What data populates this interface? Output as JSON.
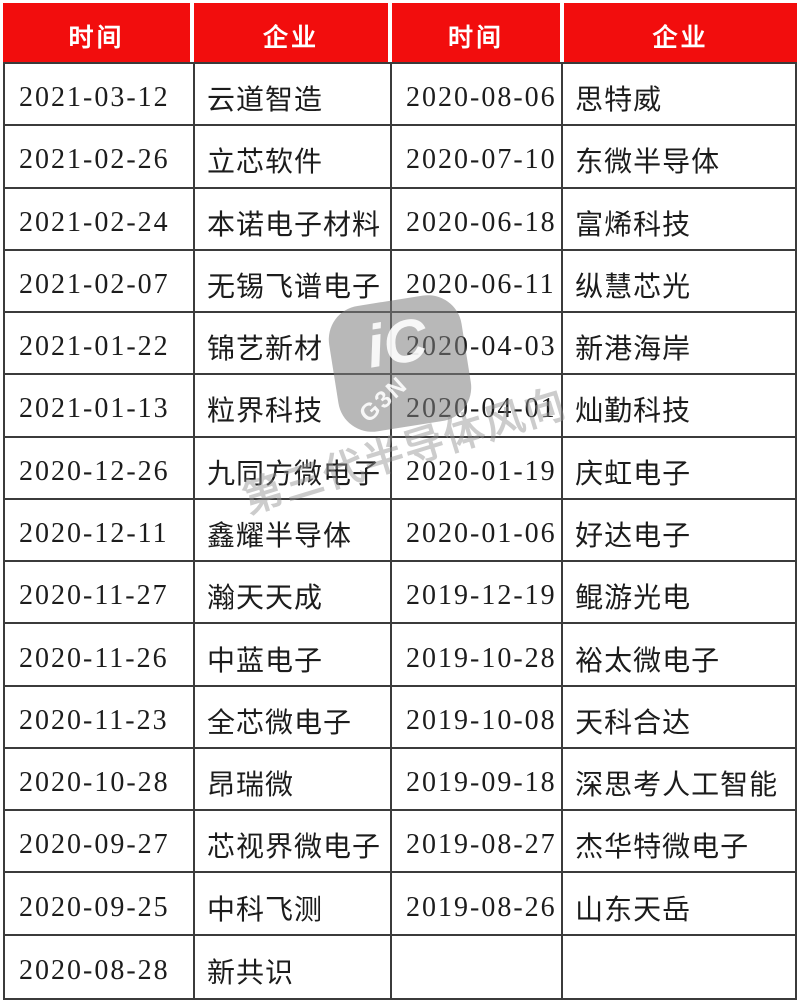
{
  "colors": {
    "header_bg": "#f20d0d",
    "header_text": "#ffffff",
    "border": "#3b3b3b",
    "cell_text": "#1c1c1c",
    "watermark": "#969696"
  },
  "table": {
    "columns": [
      "时间",
      "企业",
      "时间",
      "企业"
    ],
    "rows": [
      {
        "time_left": "2021-03-12",
        "company_left": "云道智造",
        "time_right": "2020-08-06",
        "company_right": "思特威"
      },
      {
        "time_left": "2021-02-26",
        "company_left": "立芯软件",
        "time_right": "2020-07-10",
        "company_right": "东微半导体"
      },
      {
        "time_left": "2021-02-24",
        "company_left": "本诺电子材料",
        "time_right": "2020-06-18",
        "company_right": "富烯科技"
      },
      {
        "time_left": "2021-02-07",
        "company_left": "无锡飞谱电子",
        "time_right": "2020-06-11",
        "company_right": "纵慧芯光"
      },
      {
        "time_left": "2021-01-22",
        "company_left": "锦艺新材",
        "time_right": "2020-04-03",
        "company_right": "新港海岸"
      },
      {
        "time_left": "2021-01-13",
        "company_left": "粒界科技",
        "time_right": "2020-04-01",
        "company_right": "灿勤科技"
      },
      {
        "time_left": "2020-12-26",
        "company_left": "九同方微电子",
        "time_right": "2020-01-19",
        "company_right": "庆虹电子"
      },
      {
        "time_left": "2020-12-11",
        "company_left": "鑫耀半导体",
        "time_right": "2020-01-06",
        "company_right": "好达电子"
      },
      {
        "time_left": "2020-11-27",
        "company_left": "瀚天天成",
        "time_right": "2019-12-19",
        "company_right": "鲲游光电"
      },
      {
        "time_left": "2020-11-26",
        "company_left": "中蓝电子",
        "time_right": "2019-10-28",
        "company_right": "裕太微电子"
      },
      {
        "time_left": "2020-11-23",
        "company_left": "全芯微电子",
        "time_right": "2019-10-08",
        "company_right": "天科合达"
      },
      {
        "time_left": "2020-10-28",
        "company_left": "昂瑞微",
        "time_right": "2019-09-18",
        "company_right": "深思考人工智能"
      },
      {
        "time_left": "2020-09-27",
        "company_left": "芯视界微电子",
        "time_right": "2019-08-27",
        "company_right": "杰华特微电子"
      },
      {
        "time_left": "2020-09-25",
        "company_left": "中科飞测",
        "time_right": "2019-08-26",
        "company_right": "山东天岳"
      },
      {
        "time_left": "2020-08-28",
        "company_left": "新共识",
        "time_right": "",
        "company_right": ""
      }
    ]
  },
  "watermark": {
    "logo_main": "iC",
    "logo_sub": "G3N",
    "diagonal_text": "第三代半导体风向"
  }
}
